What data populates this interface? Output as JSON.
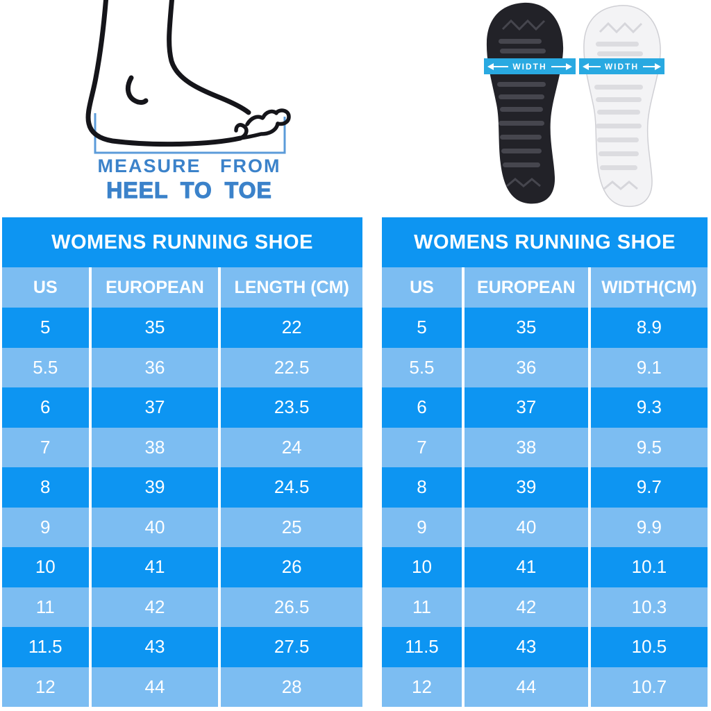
{
  "figures": {
    "foot": {
      "caption_line1": "MEASURE FROM",
      "caption_line2": "HEEL TO TOE"
    },
    "soles": {
      "black_sole_banner": "WIDTH",
      "white_sole_banner": "WIDTH"
    }
  },
  "colors": {
    "row_dark": "#0d95f2",
    "row_light": "#7cbdf2",
    "table_text": "#ffffff",
    "caption_blue": "#3b82ca",
    "bracket_blue": "#5b9bd9",
    "banner_blue": "#29a9e1"
  },
  "chart_data": [
    {
      "type": "table",
      "title": "WOMENS RUNNING SHOE",
      "columns": [
        "US",
        "EUROPEAN",
        "LENGTH (CM)"
      ],
      "rows": [
        [
          "5",
          "35",
          "22"
        ],
        [
          "5.5",
          "36",
          "22.5"
        ],
        [
          "6",
          "37",
          "23.5"
        ],
        [
          "7",
          "38",
          "24"
        ],
        [
          "8",
          "39",
          "24.5"
        ],
        [
          "9",
          "40",
          "25"
        ],
        [
          "10",
          "41",
          "26"
        ],
        [
          "11",
          "42",
          "26.5"
        ],
        [
          "11.5",
          "43",
          "27.5"
        ],
        [
          "12",
          "44",
          "28"
        ]
      ]
    },
    {
      "type": "table",
      "title": "WOMENS RUNNING SHOE",
      "columns": [
        "US",
        "EUROPEAN",
        "WIDTH(CM)"
      ],
      "rows": [
        [
          "5",
          "35",
          "8.9"
        ],
        [
          "5.5",
          "36",
          "9.1"
        ],
        [
          "6",
          "37",
          "9.3"
        ],
        [
          "7",
          "38",
          "9.5"
        ],
        [
          "8",
          "39",
          "9.7"
        ],
        [
          "9",
          "40",
          "9.9"
        ],
        [
          "10",
          "41",
          "10.1"
        ],
        [
          "11",
          "42",
          "10.3"
        ],
        [
          "11.5",
          "43",
          "10.5"
        ],
        [
          "12",
          "44",
          "10.7"
        ]
      ]
    }
  ]
}
